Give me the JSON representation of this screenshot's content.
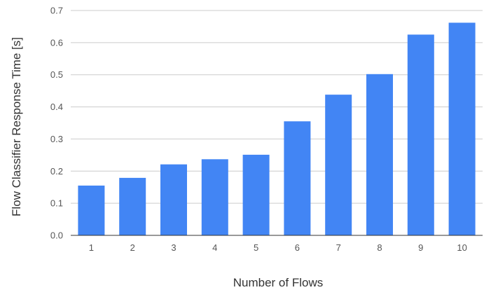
{
  "chart_data": {
    "type": "bar",
    "title": "",
    "xlabel": "Number of Flows",
    "ylabel": "Flow Classifier Response Time [s]",
    "categories": [
      "1",
      "2",
      "3",
      "4",
      "5",
      "6",
      "7",
      "8",
      "9",
      "10"
    ],
    "values": [
      0.155,
      0.179,
      0.221,
      0.237,
      0.251,
      0.355,
      0.438,
      0.502,
      0.625,
      0.662
    ],
    "ylim": [
      0,
      0.7
    ],
    "yticks": [
      "0.0",
      "0.1",
      "0.2",
      "0.3",
      "0.4",
      "0.5",
      "0.6",
      "0.7"
    ],
    "grid": true,
    "legend": "none",
    "colors": {
      "bar": "#4285f4",
      "grid": "#cccccc",
      "axis": "#333333"
    }
  }
}
